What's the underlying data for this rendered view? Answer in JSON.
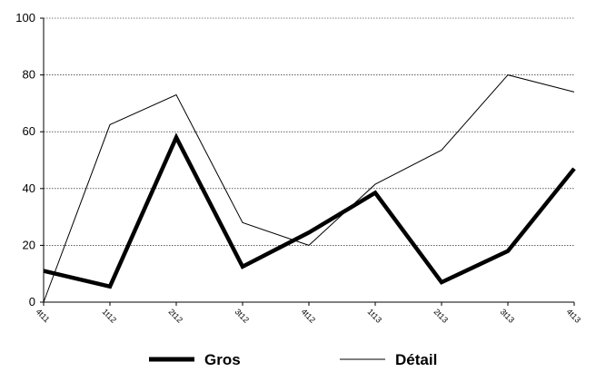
{
  "chart_data": {
    "type": "line",
    "categories": [
      "4t11",
      "1t12",
      "2t12",
      "3t12",
      "4t12",
      "1t13",
      "2t13",
      "3t13",
      "4t13"
    ],
    "series": [
      {
        "name": "Gros",
        "values": [
          11,
          5.5,
          58,
          12.5,
          24.5,
          38.5,
          7,
          18,
          47
        ],
        "color": "#000000",
        "style": "thick"
      },
      {
        "name": "Détail",
        "values": [
          0,
          62.5,
          73,
          28,
          20,
          41.5,
          53.5,
          80,
          74
        ],
        "color": "#000000",
        "style": "thin"
      }
    ],
    "yticks": [
      "0",
      "20",
      "40",
      "60",
      "80",
      "100"
    ],
    "ylim": [
      0,
      100
    ],
    "grid": "horizontal dashed",
    "legend_position": "bottom"
  }
}
